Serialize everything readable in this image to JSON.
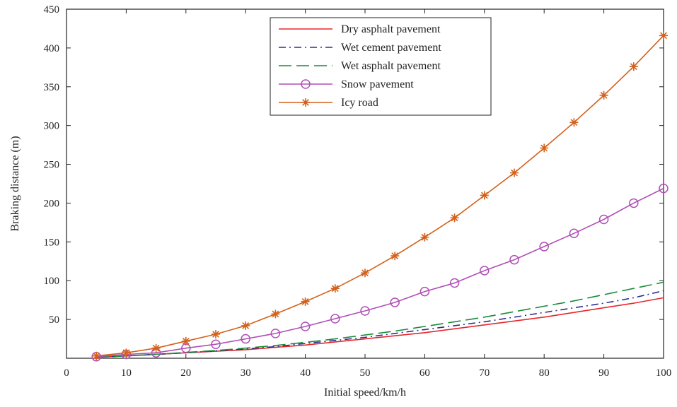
{
  "chart_data": {
    "type": "line",
    "title": "",
    "xlabel": "Initial speed/km/h",
    "ylabel": "Braking distance (m)",
    "xlim": [
      0,
      100
    ],
    "ylim": [
      0,
      450
    ],
    "x_ticks": [
      0,
      10,
      20,
      30,
      40,
      50,
      60,
      70,
      80,
      90,
      100
    ],
    "y_ticks": [
      50,
      100,
      150,
      200,
      250,
      300,
      350,
      400,
      450
    ],
    "grid": false,
    "legend_position": "top-center",
    "x": [
      5,
      10,
      15,
      20,
      25,
      30,
      35,
      40,
      45,
      50,
      55,
      60,
      65,
      70,
      75,
      80,
      85,
      90,
      95,
      100
    ],
    "series": [
      {
        "name": "Dry asphalt pavement",
        "color": "#e8262a",
        "line_style": "solid",
        "marker": "none",
        "values": [
          1.5,
          3,
          5,
          7,
          9,
          11,
          14,
          17,
          21,
          25,
          29,
          33,
          38,
          43,
          48,
          53,
          59,
          65,
          71,
          78
        ]
      },
      {
        "name": "Wet cement pavement",
        "color": "#2b2f8f",
        "line_style": "dash-dot",
        "marker": "none",
        "values": [
          1.5,
          3,
          5,
          7,
          9.5,
          12,
          15,
          19,
          23,
          27,
          32,
          37,
          42,
          47,
          53,
          59,
          65,
          71,
          78,
          87
        ]
      },
      {
        "name": "Wet asphalt pavement",
        "color": "#1a8c3a",
        "line_style": "long-dash",
        "marker": "none",
        "values": [
          1.5,
          3,
          5,
          7.5,
          10,
          13,
          16.5,
          20.5,
          25,
          30,
          35,
          41,
          47,
          53,
          60,
          67,
          74,
          82,
          90,
          98
        ]
      },
      {
        "name": "Snow pavement",
        "color": "#b04fb5",
        "line_style": "solid",
        "marker": "circle",
        "values": [
          2,
          5,
          7,
          13,
          18,
          25,
          32,
          41,
          51,
          61,
          72,
          86,
          97,
          113,
          127,
          144,
          161,
          179,
          200,
          219
        ]
      },
      {
        "name": "Icy road",
        "color": "#d4611b",
        "line_style": "solid",
        "marker": "star",
        "values": [
          3,
          7,
          13,
          22,
          31,
          42,
          57,
          73,
          90,
          110,
          132,
          156,
          181,
          210,
          239,
          271,
          304,
          339,
          376,
          416
        ]
      }
    ]
  }
}
